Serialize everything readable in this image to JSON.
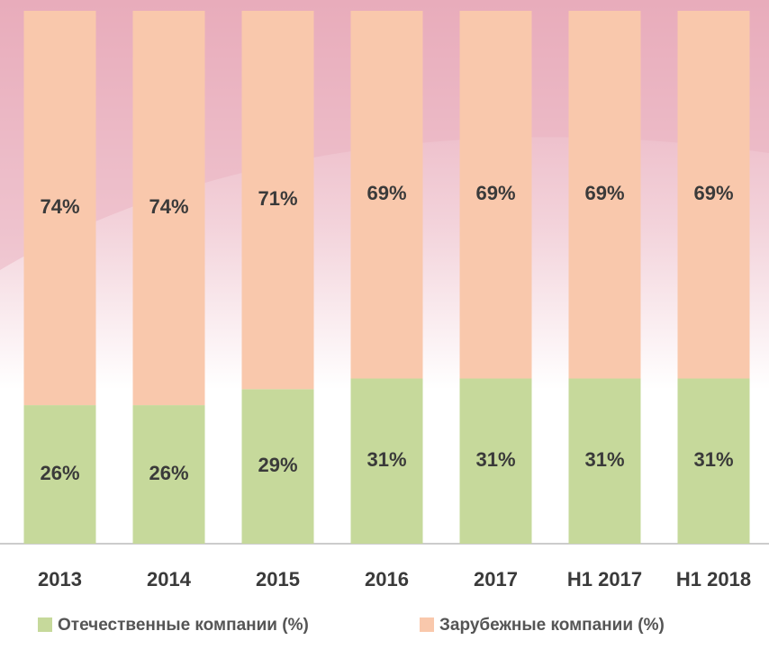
{
  "chart_data": {
    "type": "stacked_bar",
    "categories": [
      "2013",
      "2014",
      "2015",
      "2016",
      "2017",
      "H1 2017",
      "H1 2018"
    ],
    "series": [
      {
        "name": "Отечественные компании (%)",
        "color": "#c6d99b",
        "values": [
          26,
          26,
          29,
          31,
          31,
          31,
          31
        ],
        "value_labels": [
          "26%",
          "26%",
          "29%",
          "31%",
          "31%",
          "31%",
          "31%"
        ]
      },
      {
        "name": "Зарубежные компании (%)",
        "color": "#f9c8ac",
        "values": [
          74,
          74,
          71,
          69,
          69,
          69,
          69
        ],
        "value_labels": [
          "74%",
          "74%",
          "71%",
          "69%",
          "69%",
          "69%",
          "69%"
        ]
      }
    ],
    "ylim": [
      0,
      100
    ],
    "legend": "bottom"
  }
}
